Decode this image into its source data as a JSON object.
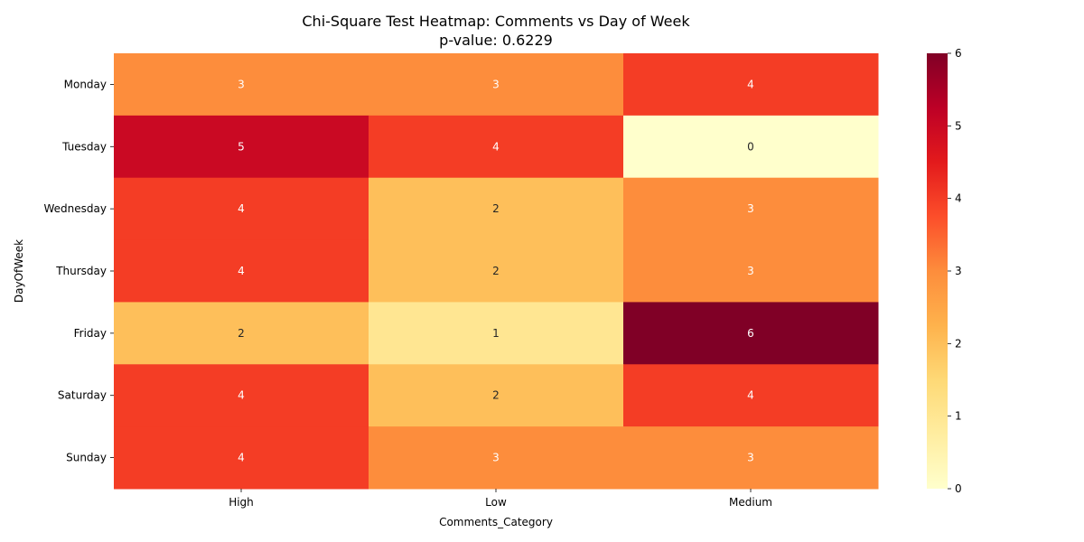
{
  "chart_data": {
    "type": "heatmap",
    "title": "Chi-Square Test Heatmap: Comments vs Day of Week",
    "subtitle": "p-value: 0.6229",
    "xlabel": "Comments_Category",
    "ylabel": "DayOfWeek",
    "columns": [
      "High",
      "Low",
      "Medium"
    ],
    "rows": [
      "Monday",
      "Tuesday",
      "Wednesday",
      "Thursday",
      "Friday",
      "Saturday",
      "Sunday"
    ],
    "values": [
      [
        3,
        3,
        4
      ],
      [
        5,
        4,
        0
      ],
      [
        4,
        2,
        3
      ],
      [
        4,
        2,
        3
      ],
      [
        2,
        1,
        6
      ],
      [
        4,
        2,
        4
      ],
      [
        4,
        3,
        3
      ]
    ],
    "colorbar": {
      "min": 0,
      "max": 6,
      "ticks": [
        "0",
        "1",
        "2",
        "3",
        "4",
        "5",
        "6"
      ],
      "colormap": "YlOrRd"
    },
    "annotations": true,
    "grid": false
  }
}
